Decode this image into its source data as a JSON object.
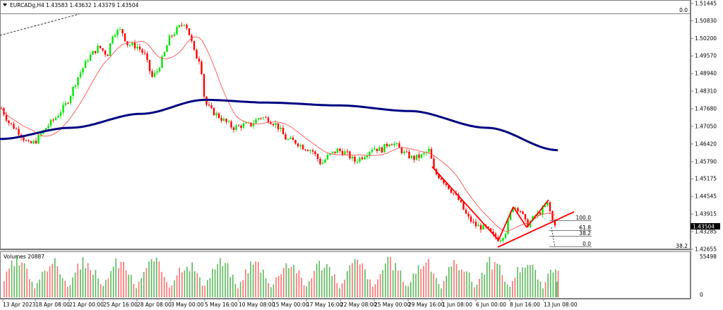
{
  "header": {
    "symbol": "EURCADg,H4",
    "ohlc": "1.43583 1.43632 1.43379 1.43504",
    "title": "EURCADg,H4  1.43583 1.43632 1.43379 1.43504"
  },
  "volumes_pane": {
    "label": "Volumes 20887",
    "scale_max": "55498",
    "scale_min": "0"
  },
  "price_scale": {
    "ticks": [
      "1.51445",
      "1.50830",
      "1.50200",
      "1.49570",
      "1.48940",
      "1.48310",
      "1.47680",
      "1.47050",
      "1.46420",
      "1.45790",
      "1.45175",
      "1.44545",
      "1.43915",
      "1.43285",
      "1.42655"
    ],
    "current_price": "1.43504",
    "top_right_label": "0.0",
    "bottom_right_label": "38.2"
  },
  "time_axis": {
    "labels": [
      "13 Apr 2023",
      "18 Apr 08:00",
      "21 Apr 00:00",
      "25 Apr 16:00",
      "28 Apr 08:00",
      "3 May 00:00",
      "5 May 16:00",
      "10 May 08:00",
      "15 May 00:00",
      "17 May 16:00",
      "22 May 08:00",
      "25 May 00:00",
      "29 May 16:00",
      "1 Jun 08:00",
      "6 Jun 00:00",
      "8 Jun 16:00",
      "13 Jun 08:00"
    ]
  },
  "fibonacci": {
    "levels": [
      "100.0",
      "61.8",
      "38.2",
      "0.0"
    ]
  },
  "colors": {
    "bull": "#00e600",
    "bear": "#ff0000",
    "ma_slow": "#000080",
    "ma_fast": "#ff6060",
    "trendline": "#ff0000",
    "vol_bull": "#5cb85c",
    "vol_bear": "#ff7070"
  },
  "chart_data": {
    "type": "candlestick",
    "title": "EURCADg,H4",
    "symbol": "EURCAD",
    "timeframe": "H4",
    "last_ohlc": {
      "open": 1.43583,
      "high": 1.43632,
      "low": 1.43379,
      "close": 1.43504
    },
    "ylim": [
      1.42655,
      1.51445
    ],
    "y_ticks": [
      1.51445,
      1.5083,
      1.502,
      1.4957,
      1.4894,
      1.4831,
      1.4768,
      1.4705,
      1.4642,
      1.4579,
      1.45175,
      1.44545,
      1.43915,
      1.43285,
      1.42655
    ],
    "x_tick_labels": [
      "13 Apr 2023",
      "18 Apr 08:00",
      "21 Apr 00:00",
      "25 Apr 16:00",
      "28 Apr 08:00",
      "3 May 00:00",
      "5 May 16:00",
      "10 May 08:00",
      "15 May 00:00",
      "17 May 16:00",
      "22 May 08:00",
      "25 May 00:00",
      "29 May 16:00",
      "1 Jun 08:00",
      "6 Jun 00:00",
      "8 Jun 16:00",
      "13 Jun 08:00"
    ],
    "close_path_approx": {
      "x": [
        "13 Apr 2023",
        "15 Apr",
        "18 Apr 08:00",
        "21 Apr 00:00",
        "25 Apr 16:00",
        "28 Apr 08:00",
        "3 May 00:00",
        "5 May 16:00",
        "10 May 08:00",
        "15 May 00:00",
        "17 May 16:00",
        "22 May 08:00",
        "25 May 00:00",
        "29 May 16:00",
        "1 Jun 08:00",
        "6 Jun 00:00",
        "8 Jun 16:00",
        "13 Jun 08:00"
      ],
      "values": [
        1.477,
        1.469,
        1.47,
        1.492,
        1.504,
        1.488,
        1.507,
        1.477,
        1.47,
        1.464,
        1.456,
        1.46,
        1.464,
        1.458,
        1.444,
        1.43,
        1.438,
        1.435
      ]
    },
    "indicators": [
      {
        "name": "Moving Average (slow, navy)",
        "values_approx": [
          1.466,
          1.47,
          1.475,
          1.48,
          1.479,
          1.478,
          1.476,
          1.47,
          1.462
        ]
      },
      {
        "name": "Moving Average (fast, red)"
      },
      {
        "name": "Volumes",
        "last": 20887,
        "scale_max": 55498
      }
    ],
    "fibonacci_levels": [
      100.0,
      61.8,
      38.2,
      0.0
    ],
    "grid": false
  }
}
